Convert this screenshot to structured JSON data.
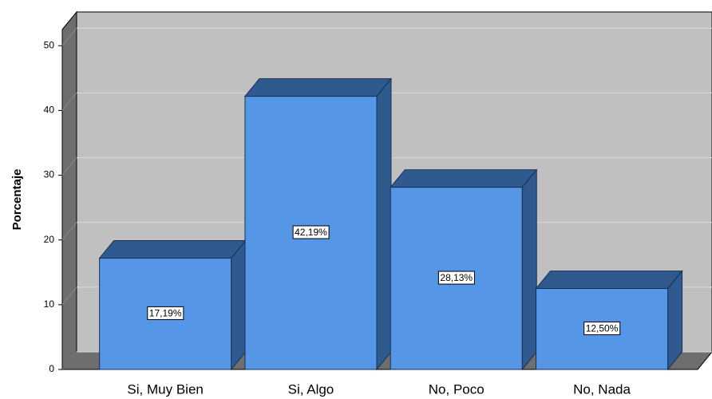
{
  "chart_data": {
    "type": "bar",
    "y_label": "Porcentaje",
    "categories": [
      "Si, Muy Bien",
      "Si, Algo",
      "No, Poco",
      "No, Nada"
    ],
    "values": [
      17.19,
      42.19,
      28.13,
      12.5
    ],
    "value_labels": [
      "17,19%",
      "42,19%",
      "28,13%",
      "12,50%"
    ],
    "color": "#5596e6",
    "ylim": [
      0,
      52.5
    ],
    "yticks": [
      0,
      10,
      20,
      30,
      40,
      50
    ],
    "grid": true
  }
}
